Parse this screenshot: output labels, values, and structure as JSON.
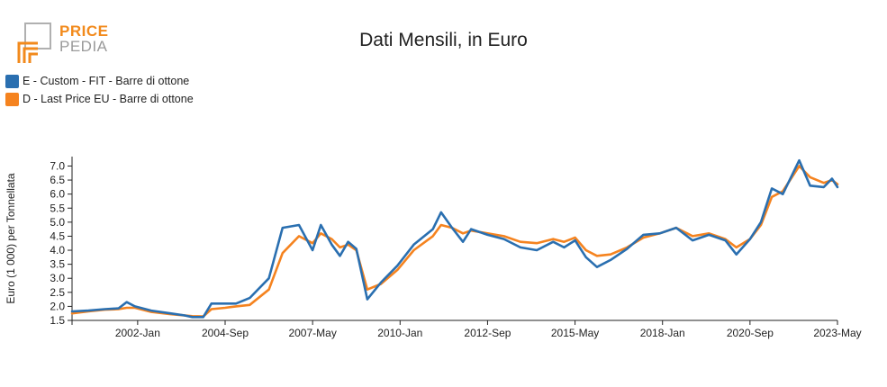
{
  "brand": {
    "line1": "PRICE",
    "line2": "PEDIA"
  },
  "colors": {
    "series_e": "#2a6fb0",
    "series_d": "#f5831f",
    "logo_orange": "#f28a1c",
    "logo_gray": "#9a9a9a"
  },
  "chart_data": {
    "type": "line",
    "title": "Dati Mensili, in Euro",
    "xlabel": "",
    "ylabel": "Euro (1 000) per Tonnellata",
    "ylim": [
      1.5,
      7.4
    ],
    "y_ticks": [
      "1.5",
      "2.0",
      "2.5",
      "3.0",
      "3.5",
      "4.0",
      "4.5",
      "5.0",
      "5.5",
      "6.0",
      "6.5",
      "7.0"
    ],
    "x_range": [
      "2000-01",
      "2023-05"
    ],
    "x_ticks": [
      "2002-Jan",
      "2004-Sep",
      "2007-May",
      "2010-Jan",
      "2012-Sep",
      "2015-May",
      "2018-Jan",
      "2020-Sep",
      "2023-May"
    ],
    "grid": false,
    "legend_position": "top-left",
    "series": [
      {
        "name": "E - Custom - FIT - Barre di ottone",
        "color": "#2a6fb0",
        "points": [
          [
            "2000-01",
            1.82
          ],
          [
            "2000-07",
            1.85
          ],
          [
            "2001-01",
            1.9
          ],
          [
            "2001-06",
            1.93
          ],
          [
            "2001-09",
            2.15
          ],
          [
            "2001-12",
            2.0
          ],
          [
            "2002-06",
            1.85
          ],
          [
            "2003-01",
            1.75
          ],
          [
            "2003-06",
            1.68
          ],
          [
            "2003-09",
            1.62
          ],
          [
            "2004-01",
            1.62
          ],
          [
            "2004-04",
            2.1
          ],
          [
            "2004-09",
            2.1
          ],
          [
            "2005-01",
            2.1
          ],
          [
            "2005-06",
            2.3
          ],
          [
            "2006-01",
            3.0
          ],
          [
            "2006-06",
            4.8
          ],
          [
            "2006-12",
            4.9
          ],
          [
            "2007-05",
            4.0
          ],
          [
            "2007-08",
            4.9
          ],
          [
            "2007-12",
            4.2
          ],
          [
            "2008-03",
            3.8
          ],
          [
            "2008-06",
            4.3
          ],
          [
            "2008-09",
            4.05
          ],
          [
            "2009-01",
            2.25
          ],
          [
            "2009-06",
            2.85
          ],
          [
            "2009-12",
            3.45
          ],
          [
            "2010-06",
            4.2
          ],
          [
            "2011-01",
            4.75
          ],
          [
            "2011-04",
            5.35
          ],
          [
            "2011-08",
            4.8
          ],
          [
            "2011-12",
            4.3
          ],
          [
            "2012-03",
            4.75
          ],
          [
            "2012-09",
            4.55
          ],
          [
            "2013-03",
            4.4
          ],
          [
            "2013-09",
            4.1
          ],
          [
            "2014-03",
            4.0
          ],
          [
            "2014-09",
            4.3
          ],
          [
            "2015-01",
            4.1
          ],
          [
            "2015-05",
            4.35
          ],
          [
            "2015-09",
            3.75
          ],
          [
            "2016-01",
            3.4
          ],
          [
            "2016-06",
            3.65
          ],
          [
            "2016-12",
            4.05
          ],
          [
            "2017-06",
            4.55
          ],
          [
            "2017-12",
            4.6
          ],
          [
            "2018-06",
            4.8
          ],
          [
            "2018-12",
            4.35
          ],
          [
            "2019-06",
            4.55
          ],
          [
            "2019-12",
            4.35
          ],
          [
            "2020-04",
            3.85
          ],
          [
            "2020-09",
            4.4
          ],
          [
            "2021-01",
            5.0
          ],
          [
            "2021-05",
            6.2
          ],
          [
            "2021-09",
            6.0
          ],
          [
            "2022-03",
            7.2
          ],
          [
            "2022-07",
            6.3
          ],
          [
            "2022-12",
            6.25
          ],
          [
            "2023-03",
            6.55
          ],
          [
            "2023-05",
            6.25
          ]
        ]
      },
      {
        "name": "D - Last Price EU - Barre di ottone",
        "color": "#f5831f",
        "points": [
          [
            "2000-01",
            1.75
          ],
          [
            "2000-07",
            1.82
          ],
          [
            "2001-01",
            1.88
          ],
          [
            "2001-06",
            1.9
          ],
          [
            "2001-09",
            1.95
          ],
          [
            "2001-12",
            1.95
          ],
          [
            "2002-06",
            1.8
          ],
          [
            "2003-01",
            1.72
          ],
          [
            "2003-06",
            1.68
          ],
          [
            "2003-09",
            1.65
          ],
          [
            "2004-01",
            1.64
          ],
          [
            "2004-04",
            1.9
          ],
          [
            "2004-09",
            1.95
          ],
          [
            "2005-01",
            2.0
          ],
          [
            "2005-06",
            2.05
          ],
          [
            "2006-01",
            2.6
          ],
          [
            "2006-06",
            3.9
          ],
          [
            "2006-12",
            4.5
          ],
          [
            "2007-05",
            4.25
          ],
          [
            "2007-08",
            4.6
          ],
          [
            "2007-12",
            4.4
          ],
          [
            "2008-03",
            4.1
          ],
          [
            "2008-06",
            4.2
          ],
          [
            "2008-09",
            4.0
          ],
          [
            "2009-01",
            2.6
          ],
          [
            "2009-06",
            2.8
          ],
          [
            "2009-12",
            3.3
          ],
          [
            "2010-06",
            4.0
          ],
          [
            "2011-01",
            4.5
          ],
          [
            "2011-04",
            4.9
          ],
          [
            "2011-08",
            4.8
          ],
          [
            "2011-12",
            4.6
          ],
          [
            "2012-03",
            4.7
          ],
          [
            "2012-09",
            4.6
          ],
          [
            "2013-03",
            4.5
          ],
          [
            "2013-09",
            4.3
          ],
          [
            "2014-03",
            4.25
          ],
          [
            "2014-09",
            4.4
          ],
          [
            "2015-01",
            4.3
          ],
          [
            "2015-05",
            4.45
          ],
          [
            "2015-09",
            4.0
          ],
          [
            "2016-01",
            3.8
          ],
          [
            "2016-06",
            3.85
          ],
          [
            "2016-12",
            4.1
          ],
          [
            "2017-06",
            4.45
          ],
          [
            "2017-12",
            4.6
          ],
          [
            "2018-06",
            4.8
          ],
          [
            "2018-12",
            4.5
          ],
          [
            "2019-06",
            4.6
          ],
          [
            "2019-12",
            4.4
          ],
          [
            "2020-04",
            4.1
          ],
          [
            "2020-09",
            4.4
          ],
          [
            "2021-01",
            4.9
          ],
          [
            "2021-05",
            5.9
          ],
          [
            "2021-09",
            6.1
          ],
          [
            "2022-03",
            7.0
          ],
          [
            "2022-07",
            6.6
          ],
          [
            "2022-12",
            6.4
          ],
          [
            "2023-03",
            6.5
          ],
          [
            "2023-05",
            6.35
          ]
        ]
      }
    ]
  }
}
